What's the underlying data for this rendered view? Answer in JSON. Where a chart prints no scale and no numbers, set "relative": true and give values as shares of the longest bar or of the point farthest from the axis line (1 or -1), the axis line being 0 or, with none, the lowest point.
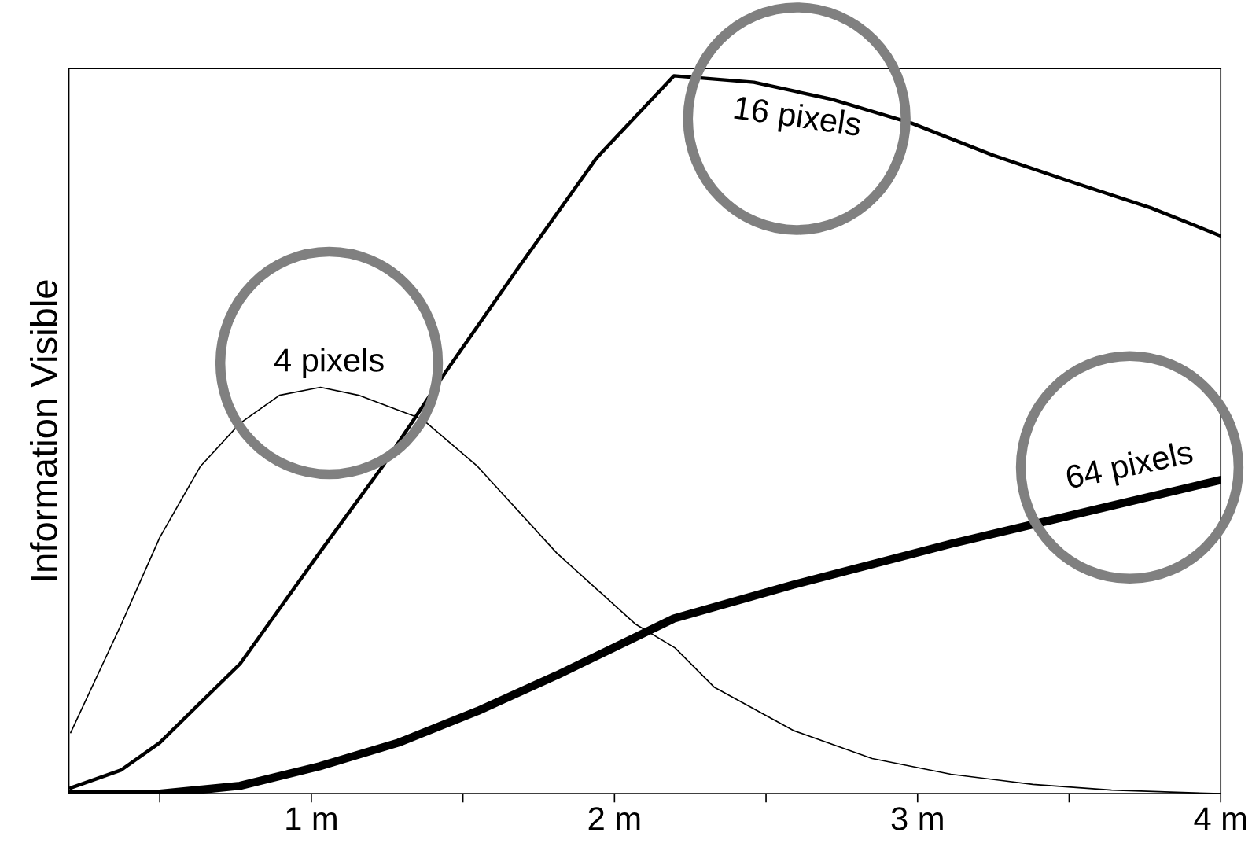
{
  "chart_data": {
    "type": "line",
    "relative": true,
    "ylabel": "Information Visible",
    "xlim": [
      0.2,
      4
    ],
    "xticks": [
      {
        "value": 0.5,
        "label": null
      },
      {
        "value": 1,
        "label": "1 m"
      },
      {
        "value": 1.5,
        "label": null
      },
      {
        "value": 2,
        "label": "2 m"
      },
      {
        "value": 2.5,
        "label": null
      },
      {
        "value": 3,
        "label": "3 m"
      },
      {
        "value": 3.5,
        "label": null
      },
      {
        "value": 4,
        "label": "4 m"
      }
    ],
    "grid": false,
    "legend": false,
    "marker": "none",
    "line_style": "solid",
    "series": [
      {
        "color": "#000000",
        "x": [
          0.206,
          0.373,
          0.5,
          0.634,
          0.765,
          0.895,
          1.03,
          1.156,
          1.365,
          1.548,
          1.81,
          2.07,
          2.2,
          2.33,
          2.59,
          2.85,
          3.11,
          3.38,
          3.64,
          4.0
        ],
        "values": [
          0.085,
          0.236,
          0.357,
          0.456,
          0.516,
          0.555,
          0.566,
          0.555,
          0.522,
          0.456,
          0.335,
          0.236,
          0.203,
          0.148,
          0.088,
          0.049,
          0.027,
          0.013,
          0.005,
          0.0
        ]
      },
      {
        "color": "#000000",
        "x": [
          0.206,
          0.373,
          0.5,
          0.765,
          1.026,
          1.235,
          1.444,
          1.68,
          1.94,
          2.196,
          2.46,
          2.72,
          2.98,
          3.245,
          3.51,
          3.77,
          4.0
        ],
        "values": [
          0.008,
          0.033,
          0.071,
          0.181,
          0.335,
          0.456,
          0.588,
          0.731,
          0.885,
          1.0,
          0.991,
          0.967,
          0.934,
          0.89,
          0.852,
          0.816,
          0.777
        ]
      },
      {
        "color": "#000000",
        "x": [
          0.206,
          0.5,
          0.765,
          1.026,
          1.287,
          1.548,
          1.81,
          2.196,
          2.59,
          3.11,
          3.64,
          4.0
        ],
        "values": [
          0.0,
          0.0,
          0.011,
          0.038,
          0.071,
          0.115,
          0.165,
          0.244,
          0.291,
          0.348,
          0.401,
          0.437
        ]
      }
    ],
    "annotations": [
      "4 pixels",
      "16 pixels",
      "64 pixels"
    ]
  }
}
